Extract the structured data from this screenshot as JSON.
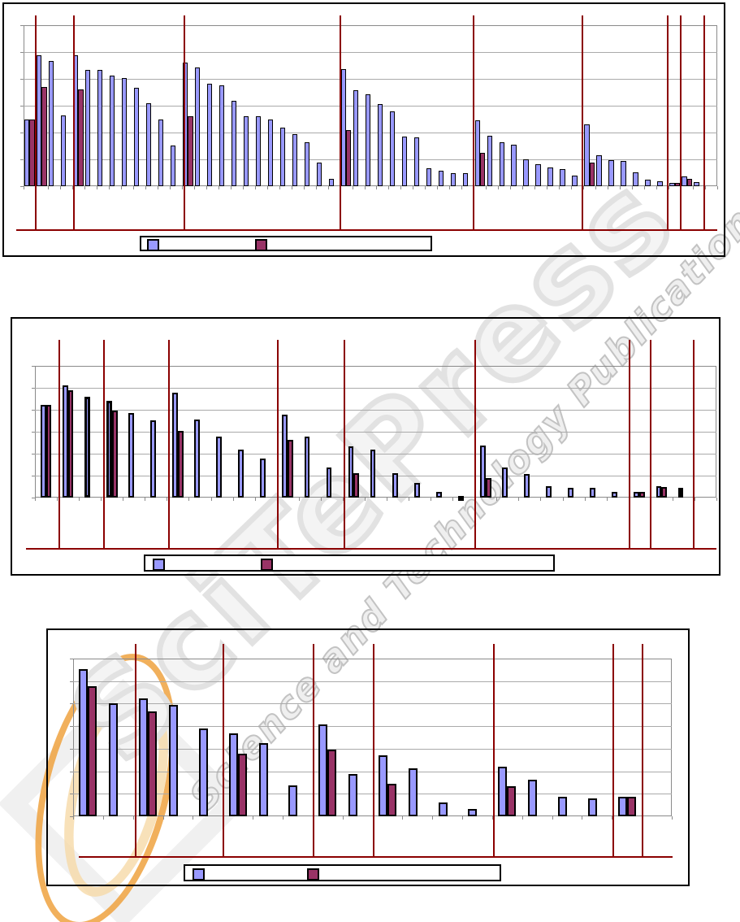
{
  "watermark": {
    "brand": "SciTePress",
    "tagline": "Science and Technology Publications",
    "accent_orange": "#EFA23F",
    "accent_cream": "#F6D9A8",
    "gray": "#E2E2E2"
  },
  "colors": {
    "series1_fill": "#9999FF",
    "series2_fill": "#993366",
    "bar_border": "#000000",
    "separator_red": "#8B0000",
    "grid_gray": "#AAAAAA"
  },
  "chart_data": [
    {
      "type": "bar",
      "title": "",
      "unit": "percent-of-axis-max",
      "y_axis": {
        "tick_labels_visible": false,
        "gridline_intervals": 6,
        "ylim": [
          0,
          100
        ]
      },
      "x_axis": {
        "tick_labels_visible": false,
        "category_slots": 57
      },
      "legend": {
        "position": "bottom",
        "entries": [
          {
            "label": "",
            "color": "#9999FF"
          },
          {
            "label": "",
            "color": "#993366"
          }
        ]
      },
      "group_separators_pct": [
        1.6,
        7.2,
        23.1,
        45.6,
        64.8,
        80.5,
        92.7,
        94.6,
        98.0
      ],
      "series": [
        {
          "name": "",
          "color": "#9999FF",
          "values": [
            41.4,
            81.5,
            77.7,
            44,
            81.5,
            72.3,
            72.1,
            68.9,
            67.1,
            61.2,
            51.3,
            41.5,
            25.2,
            76.8,
            73.8,
            63.4,
            62.5,
            53,
            43.5,
            43.2,
            41.5,
            36.5,
            32.3,
            27.2,
            14.6,
            4.5,
            72.6,
            59.7,
            57,
            50.9,
            46.5,
            30.6,
            30.3,
            11.2,
            9.6,
            8.2,
            8.2,
            40.7,
            31.1,
            27.2,
            25.6,
            16.6,
            13.8,
            11.6,
            10.4,
            6.7,
            38.5,
            19.2,
            16,
            15.5,
            8.7,
            4,
            2.9,
            2,
            5.9,
            2.4
          ]
        },
        {
          "name": "",
          "color": "#993366",
          "values": [
            41.4,
            61.4,
            null,
            null,
            60,
            null,
            null,
            null,
            null,
            null,
            null,
            null,
            null,
            43.5,
            null,
            null,
            null,
            null,
            null,
            null,
            null,
            null,
            null,
            null,
            null,
            null,
            35.1,
            null,
            null,
            null,
            null,
            null,
            null,
            null,
            null,
            null,
            null,
            20.5,
            null,
            null,
            null,
            null,
            null,
            null,
            null,
            null,
            14.6,
            null,
            null,
            null,
            null,
            null,
            null,
            1.8,
            4.5,
            null
          ]
        }
      ]
    },
    {
      "type": "bar",
      "title": "",
      "unit": "percent-of-axis-max",
      "y_axis": {
        "tick_labels_visible": false,
        "gridline_intervals": 6,
        "ylim": [
          0,
          100
        ]
      },
      "x_axis": {
        "tick_labels_visible": false,
        "category_slots": 31
      },
      "legend": {
        "position": "bottom",
        "entries": [
          {
            "label": "",
            "color": "#9999FF"
          },
          {
            "label": "",
            "color": "#993366"
          }
        ]
      },
      "group_separators_pct": [
        3.5,
        10.0,
        19.5,
        35.5,
        45.3,
        64.5,
        87.1,
        90.2,
        96.5
      ],
      "emphasized_bars": [
        2,
        3,
        19,
        29
      ],
      "series": [
        {
          "name": "",
          "color": "#9999FF",
          "values": [
            70.5,
            85.2,
            76.3,
            73.6,
            63.9,
            58.7,
            79.4,
            59.4,
            46.4,
            36.5,
            29.9,
            62.9,
            46.4,
            23.1,
            38.8,
            36.5,
            18.6,
            10.9,
            4.1,
            1.5,
            39.6,
            22.7,
            17.6,
            8.7,
            7.7,
            7.2,
            4.1,
            4.1,
            8.7,
            7.2
          ]
        },
        {
          "name": "",
          "color": "#993366",
          "values": [
            70.5,
            81.4,
            null,
            66,
            null,
            null,
            50.5,
            null,
            null,
            null,
            null,
            43.7,
            null,
            null,
            18.6,
            null,
            null,
            null,
            null,
            null,
            14.8,
            null,
            null,
            null,
            null,
            null,
            null,
            4.1,
            8.3,
            null
          ]
        }
      ]
    },
    {
      "type": "bar",
      "title": "",
      "unit": "percent-of-axis-max",
      "y_axis": {
        "tick_labels_visible": false,
        "gridline_intervals": 7,
        "ylim": [
          0,
          100
        ]
      },
      "x_axis": {
        "tick_labels_visible": false,
        "category_slots": 20
      },
      "legend": {
        "position": "bottom",
        "entries": [
          {
            "label": "",
            "color": "#9999FF"
          },
          {
            "label": "",
            "color": "#993366"
          }
        ]
      },
      "group_separators_pct": [
        10.3,
        25.0,
        40.0,
        50.1,
        70.2,
        90.1,
        95.0
      ],
      "series": [
        {
          "name": "",
          "color": "#9999FF",
          "values": [
            93.2,
            71.8,
            74.7,
            70.4,
            55.9,
            52.5,
            46.2,
            19.6,
            58.5,
            26.8,
            38.8,
            30.3,
            8.6,
            4.6,
            31.6,
            23.4,
            12.5,
            11.1,
            12.5
          ]
        },
        {
          "name": "",
          "color": "#993366",
          "values": [
            82.6,
            null,
            66.7,
            null,
            null,
            39.8,
            null,
            null,
            42.2,
            null,
            20.5,
            null,
            null,
            null,
            19.3,
            null,
            null,
            null,
            12.5
          ]
        }
      ]
    }
  ]
}
